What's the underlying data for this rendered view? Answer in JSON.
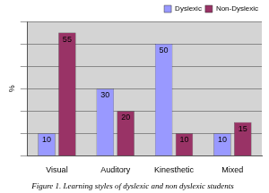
{
  "chart_data": {
    "type": "bar",
    "title": "Figure 1. Learning styles of dyslexic and non dyslexic students",
    "y_label": "%",
    "categories": [
      "Visual",
      "Auditory",
      "Kinesthetic",
      "Mixed"
    ],
    "series": [
      {
        "name": "Dyslexic",
        "color": "#9999ff",
        "values": [
          10,
          30,
          50,
          10
        ]
      },
      {
        "name": "Non-Dyslexic",
        "color": "#993366",
        "values": [
          55,
          20,
          10,
          15
        ]
      }
    ],
    "ylim": [
      0,
      60
    ],
    "yticks": [
      0,
      10,
      20,
      30,
      40,
      50,
      60
    ],
    "grid": true,
    "legend": "upper right",
    "data_labels": true,
    "tick_labels": "x"
  }
}
